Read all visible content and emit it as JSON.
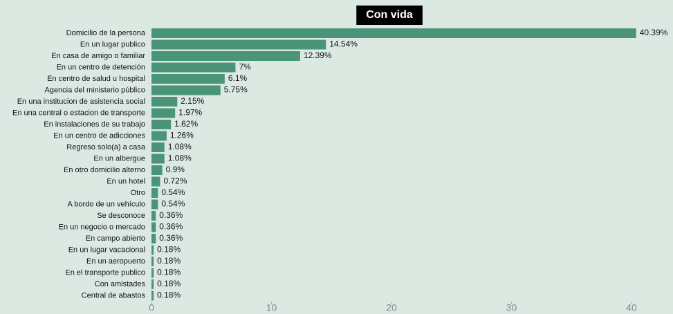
{
  "chart_data": {
    "type": "barh",
    "title": "Con vida",
    "categories": [
      "Domicilio de la persona",
      "En un lugar publico",
      "En casa de amigo o familiar",
      "En un centro de detención",
      "En centro de salud u hospital",
      "Agencia del ministerio público",
      "En una institucion de asistencia social",
      "En una central o estacion de transporte",
      "En instalaciones de su trabajo",
      "En un centro de adicciones",
      "Regreso solo(a) a casa",
      "En un albergue",
      "En otro domicilio alterno",
      "En un hotel",
      "Otro",
      "A bordo de un vehículo",
      "Se desconoce",
      "En un negocio o mercado",
      "En campo abierto",
      "En un lugar vacacional",
      "En un aeropuerto",
      "En el transporte publico",
      "Con amistades",
      "Central de abastos"
    ],
    "values": [
      40.39,
      14.54,
      12.39,
      7,
      6.1,
      5.75,
      2.15,
      1.97,
      1.62,
      1.26,
      1.08,
      1.08,
      0.9,
      0.72,
      0.54,
      0.54,
      0.36,
      0.36,
      0.36,
      0.18,
      0.18,
      0.18,
      0.18,
      0.18
    ],
    "value_labels": [
      "40.39%",
      "14.54%",
      "12.39%",
      "7%",
      "6.1%",
      "5.75%",
      "2.15%",
      "1.97%",
      "1.62%",
      "1.26%",
      "1.08%",
      "1.08%",
      "0.9%",
      "0.72%",
      "0.54%",
      "0.54%",
      "0.36%",
      "0.36%",
      "0.36%",
      "0.18%",
      "0.18%",
      "0.18%",
      "0.18%",
      "0.18%"
    ],
    "color": "#4a9479",
    "xlim": [
      0,
      43
    ],
    "xticks": [
      0,
      10,
      20,
      30,
      40
    ]
  }
}
